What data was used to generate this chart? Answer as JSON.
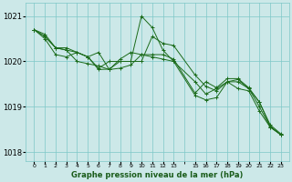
{
  "background_color": "#cce8e8",
  "grid_color": "#7ec8c8",
  "line_color": "#1a6b1a",
  "xlabel": "Graphe pression niveau de la mer (hPa)",
  "ylim": [
    1017.8,
    1021.3
  ],
  "yticks": [
    1018,
    1019,
    1020,
    1021
  ],
  "xtick_positions": [
    0,
    1,
    2,
    3,
    4,
    5,
    6,
    7,
    8,
    9,
    10,
    11,
    12,
    13,
    15,
    16,
    17,
    18,
    19,
    20,
    21,
    22,
    23
  ],
  "xtick_labels": [
    "0",
    "1",
    "2",
    "3",
    "4",
    "5",
    "6",
    "7",
    "8",
    "9",
    "10",
    "11",
    "12",
    "13",
    "15",
    "16",
    "17",
    "18",
    "19",
    "20",
    "21",
    "22",
    "23"
  ],
  "series": [
    {
      "x": [
        0,
        1,
        2,
        3,
        4,
        5,
        6,
        7,
        8,
        9,
        10,
        11,
        12,
        13,
        15,
        16,
        17,
        18,
        19,
        20,
        21,
        22,
        23
      ],
      "y": [
        1020.7,
        1020.55,
        1020.3,
        1020.25,
        1020.2,
        1020.1,
        1020.2,
        1019.82,
        1020.05,
        1020.2,
        1020.15,
        1020.15,
        1020.15,
        1020.05,
        1019.3,
        1019.55,
        1019.42,
        1019.62,
        1019.62,
        1019.42,
        1019.1,
        1018.57,
        1018.38
      ]
    },
    {
      "x": [
        0,
        1,
        2,
        3,
        4,
        5,
        6,
        7,
        8,
        9,
        10,
        11,
        12,
        13,
        15,
        16,
        17,
        18,
        19,
        20,
        21,
        22,
        23
      ],
      "y": [
        1020.7,
        1020.6,
        1020.3,
        1020.3,
        1020.2,
        1020.1,
        1019.85,
        1020.0,
        1020.0,
        1020.0,
        1020.0,
        1020.55,
        1020.4,
        1020.35,
        1019.7,
        1019.45,
        1019.35,
        1019.55,
        1019.55,
        1019.4,
        1019.1,
        1018.6,
        1018.4
      ]
    },
    {
      "x": [
        0,
        1,
        2,
        3,
        4,
        5,
        6,
        7,
        8,
        9,
        10,
        11,
        12,
        13,
        15,
        16,
        17,
        18,
        19,
        20,
        21,
        22,
        23
      ],
      "y": [
        1020.7,
        1020.55,
        1020.3,
        1020.25,
        1020.0,
        1019.95,
        1019.9,
        1019.82,
        1019.85,
        1019.92,
        1020.15,
        1020.1,
        1020.05,
        1020.0,
        1019.55,
        1019.28,
        1019.4,
        1019.55,
        1019.6,
        1019.4,
        1019.0,
        1018.55,
        1018.38
      ]
    },
    {
      "x": [
        0,
        1,
        2,
        3,
        4,
        5,
        6,
        7,
        8,
        9,
        10,
        11,
        12,
        13,
        15,
        16,
        17,
        18,
        19,
        20,
        21,
        22,
        23
      ],
      "y": [
        1020.7,
        1020.5,
        1020.15,
        1020.1,
        1020.2,
        1020.1,
        1019.82,
        1019.83,
        1020.0,
        1020.0,
        1021.0,
        1020.75,
        1020.25,
        1020.0,
        1019.25,
        1019.15,
        1019.2,
        1019.55,
        1019.4,
        1019.35,
        1018.9,
        1018.55,
        1018.38
      ]
    }
  ]
}
